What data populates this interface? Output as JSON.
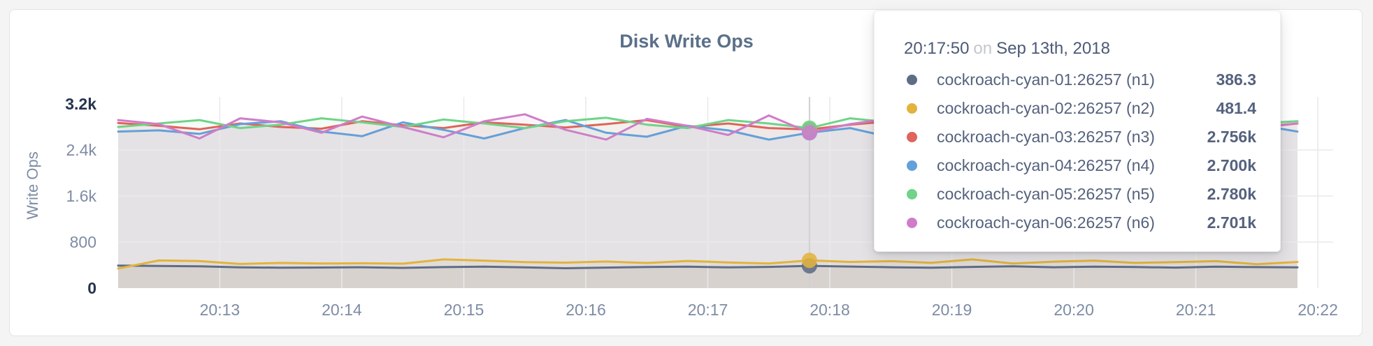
{
  "chart_data": {
    "type": "line",
    "title": "Disk Write Ops",
    "ylabel": "Write Ops",
    "ylim": [
      0,
      3200
    ],
    "grid": true,
    "x_start_time": "20:12:10",
    "x_step_seconds": 20,
    "x_total_seconds": 580,
    "x_ticks": [
      {
        "label": "20:13",
        "t": 50
      },
      {
        "label": "20:14",
        "t": 110
      },
      {
        "label": "20:15",
        "t": 170
      },
      {
        "label": "20:16",
        "t": 230
      },
      {
        "label": "20:17",
        "t": 290
      },
      {
        "label": "20:18",
        "t": 350
      },
      {
        "label": "20:19",
        "t": 410
      },
      {
        "label": "20:20",
        "t": 470
      },
      {
        "label": "20:21",
        "t": 530
      },
      {
        "label": "20:22",
        "t": 590
      }
    ],
    "y_ticks": [
      {
        "label": "0",
        "value": 0,
        "strong": true
      },
      {
        "label": "800",
        "value": 800,
        "strong": false
      },
      {
        "label": "1.6k",
        "value": 1600,
        "strong": false
      },
      {
        "label": "2.4k",
        "value": 2400,
        "strong": false
      },
      {
        "label": "3.2k",
        "value": 3200,
        "strong": true
      }
    ],
    "grid_y_values": [
      800,
      1600,
      2400
    ],
    "highlight_index": 17,
    "highlight_time": "20:17:50",
    "series": [
      {
        "name": "cockroach-cyan-01:26257 (n1)",
        "color": "#5f6c87",
        "fill_opacity": 0.1,
        "values": [
          390,
          385,
          378,
          360,
          355,
          358,
          362,
          352,
          365,
          372,
          360,
          345,
          356,
          366,
          372,
          360,
          368,
          386.3,
          375,
          362,
          355,
          368,
          378,
          362,
          372,
          366,
          356,
          372,
          365,
          360
        ]
      },
      {
        "name": "cockroach-cyan-02:26257 (n2)",
        "color": "#e2b33d",
        "fill_opacity": 0.1,
        "values": [
          340,
          480,
          470,
          420,
          438,
          428,
          432,
          424,
          498,
          478,
          452,
          442,
          462,
          436,
          472,
          446,
          428,
          481.4,
          455,
          468,
          440,
          498,
          428,
          460,
          478,
          438,
          452,
          468,
          415,
          455
        ]
      },
      {
        "name": "cockroach-cyan-03:26257 (n3)",
        "color": "#e0635c",
        "fill_opacity": 0.08,
        "values": [
          2870,
          2820,
          2760,
          2860,
          2800,
          2770,
          2900,
          2830,
          2780,
          2880,
          2840,
          2790,
          2850,
          2920,
          2800,
          2860,
          2780,
          2756,
          2840,
          2900,
          2800,
          2860,
          2820,
          2760,
          2880,
          2830,
          2790,
          2850,
          2800,
          2860
        ]
      },
      {
        "name": "cockroach-cyan-04:26257 (n4)",
        "color": "#64a0d9",
        "fill_opacity": 0.08,
        "values": [
          2720,
          2740,
          2680,
          2850,
          2900,
          2720,
          2640,
          2880,
          2750,
          2600,
          2780,
          2920,
          2700,
          2630,
          2820,
          2740,
          2580,
          2700,
          2780,
          2620,
          2720,
          2860,
          2680,
          2750,
          2900,
          2700,
          2620,
          2780,
          2840,
          2720
        ]
      },
      {
        "name": "cockroach-cyan-05:26257 (n5)",
        "color": "#6fd388",
        "fill_opacity": 0.08,
        "values": [
          2800,
          2860,
          2920,
          2780,
          2840,
          2950,
          2880,
          2800,
          2930,
          2860,
          2780,
          2900,
          2960,
          2840,
          2780,
          2920,
          2860,
          2780,
          2950,
          2880,
          2800,
          2920,
          2850,
          2960,
          2820,
          2880,
          2940,
          2800,
          2860,
          2900
        ]
      },
      {
        "name": "cockroach-cyan-06:26257 (n6)",
        "color": "#cf7dc8",
        "fill_opacity": 0.08,
        "values": [
          2920,
          2850,
          2600,
          2950,
          2880,
          2700,
          2980,
          2800,
          2620,
          2900,
          3020,
          2750,
          2580,
          2940,
          2820,
          2660,
          3000,
          2701,
          2850,
          2950,
          2720,
          2600,
          2880,
          2960,
          2700,
          2820,
          2920,
          2640,
          2780,
          2860
        ]
      }
    ]
  },
  "tooltip": {
    "time": "20:17:50",
    "connector": "on",
    "date": "Sep 13th, 2018",
    "rows": [
      {
        "label": "cockroach-cyan-01:26257 (n1)",
        "value": "386.3",
        "color": "#5f6c87"
      },
      {
        "label": "cockroach-cyan-02:26257 (n2)",
        "value": "481.4",
        "color": "#e2b33d"
      },
      {
        "label": "cockroach-cyan-03:26257 (n3)",
        "value": "2.756k",
        "color": "#e0635c"
      },
      {
        "label": "cockroach-cyan-04:26257 (n4)",
        "value": "2.700k",
        "color": "#64a0d9"
      },
      {
        "label": "cockroach-cyan-05:26257 (n5)",
        "value": "2.780k",
        "color": "#6fd388"
      },
      {
        "label": "cockroach-cyan-06:26257 (n6)",
        "value": "2.701k",
        "color": "#cf7dc8"
      }
    ]
  }
}
